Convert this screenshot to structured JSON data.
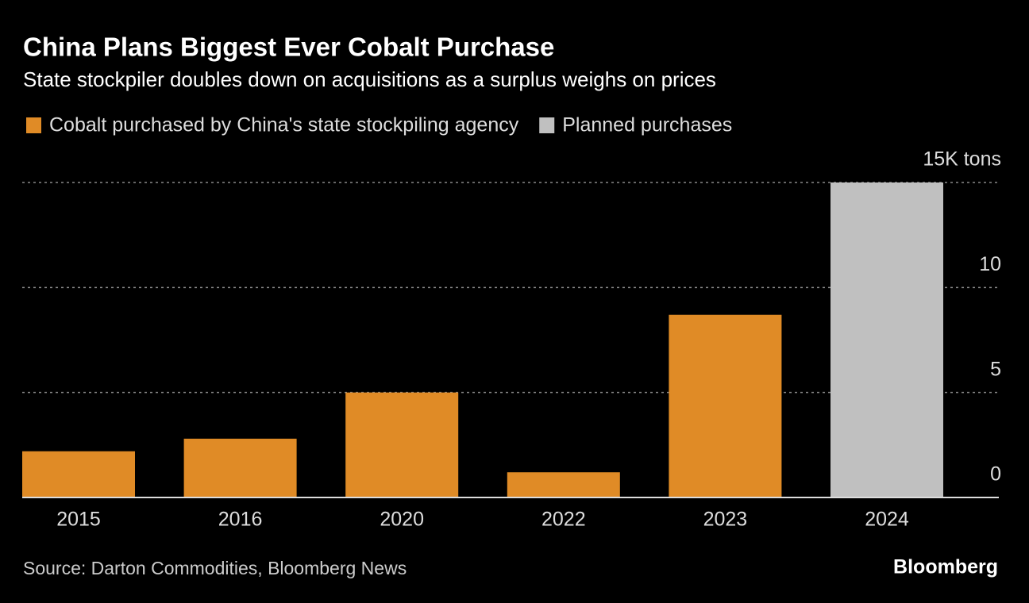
{
  "chart_data": {
    "type": "bar",
    "title": "China Plans Biggest Ever Cobalt Purchase",
    "subtitle": "State stockpiler doubles down on acquisitions as a surplus weighs on prices",
    "categories": [
      "2015",
      "2016",
      "2020",
      "2022",
      "2023",
      "2024"
    ],
    "series": [
      {
        "name": "Cobalt purchased by China's state stockpiling agency",
        "color": "#e08b26",
        "values": [
          2.2,
          2.8,
          5.0,
          1.2,
          8.7,
          null
        ]
      },
      {
        "name": "Planned purchases",
        "color": "#c0c0c0",
        "values": [
          null,
          null,
          null,
          null,
          null,
          15
        ]
      }
    ],
    "ylim": [
      0,
      15
    ],
    "yticks": [
      0,
      5,
      10,
      {
        "value": 15,
        "label": "15K tons"
      }
    ],
    "grid": true,
    "source": "Source: Darton Commodities, Bloomberg News",
    "logo": "Bloomberg"
  }
}
